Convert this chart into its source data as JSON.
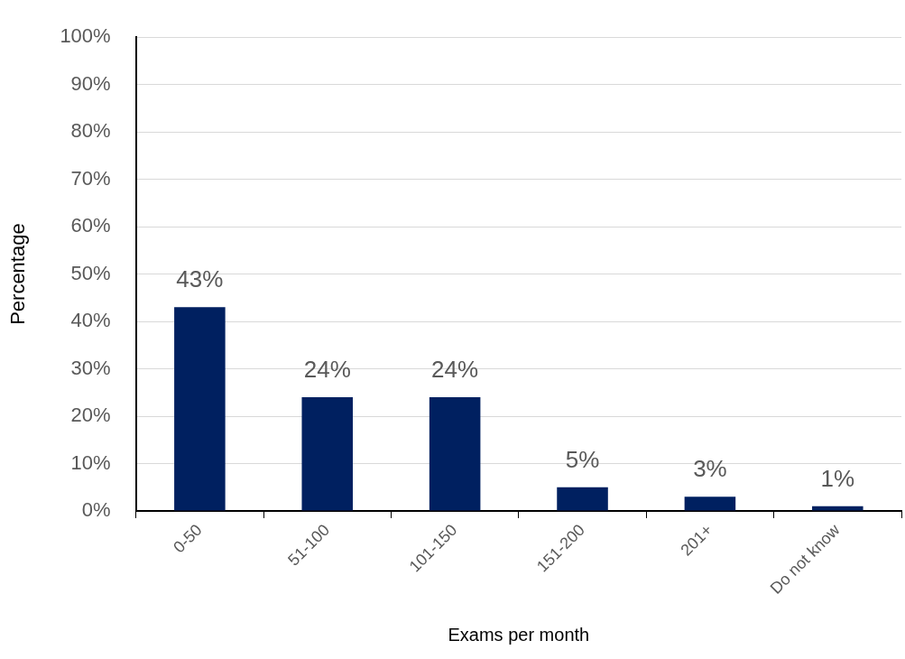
{
  "chart_data": {
    "type": "bar",
    "xlabel": "Exams per month",
    "ylabel": "Percentage",
    "categories": [
      "0-50",
      "51-100",
      "101-150",
      "151-200",
      "201+",
      "Do not know"
    ],
    "values": [
      43,
      24,
      24,
      5,
      3,
      1
    ],
    "value_labels": [
      "43%",
      "24%",
      "24%",
      "5%",
      "3%",
      "1%"
    ],
    "color": "#002060",
    "ylim": [
      0,
      100
    ],
    "yticks": [
      {
        "value": 0,
        "label": "0%"
      },
      {
        "value": 10,
        "label": "10%"
      },
      {
        "value": 20,
        "label": "20%"
      },
      {
        "value": 30,
        "label": "30%"
      },
      {
        "value": 40,
        "label": "40%"
      },
      {
        "value": 50,
        "label": "50%"
      },
      {
        "value": 60,
        "label": "60%"
      },
      {
        "value": 70,
        "label": "70%"
      },
      {
        "value": 80,
        "label": "80%"
      },
      {
        "value": 90,
        "label": "90%"
      },
      {
        "value": 100,
        "label": "100%"
      }
    ],
    "grid": "y",
    "legend": false
  }
}
